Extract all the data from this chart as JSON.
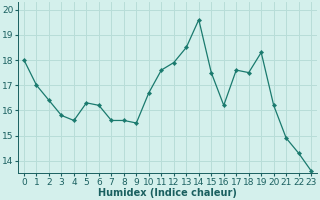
{
  "x": [
    0,
    1,
    2,
    3,
    4,
    5,
    6,
    7,
    8,
    9,
    10,
    11,
    12,
    13,
    14,
    15,
    16,
    17,
    18,
    19,
    20,
    21,
    22,
    23
  ],
  "y": [
    18.0,
    17.0,
    16.4,
    15.8,
    15.6,
    16.3,
    16.2,
    15.6,
    15.6,
    15.5,
    16.7,
    17.6,
    17.9,
    18.5,
    19.6,
    17.5,
    16.2,
    17.6,
    17.5,
    18.3,
    16.2,
    14.9,
    14.3,
    13.6
  ],
  "xlabel": "Humidex (Indice chaleur)",
  "line_color": "#1a7a6e",
  "marker_color": "#1a7a6e",
  "bg_color": "#d4f0ec",
  "grid_color": "#b8ddd8",
  "xlim": [
    -0.5,
    23.5
  ],
  "ylim": [
    13.5,
    20.3
  ],
  "yticks": [
    14,
    15,
    16,
    17,
    18,
    19,
    20
  ],
  "xtick_labels": [
    "0",
    "1",
    "2",
    "3",
    "4",
    "5",
    "6",
    "7",
    "8",
    "9",
    "10",
    "11",
    "12",
    "13",
    "14",
    "15",
    "16",
    "17",
    "18",
    "19",
    "20",
    "21",
    "22",
    "23"
  ],
  "xlabel_fontsize": 7,
  "tick_fontsize": 6.5,
  "text_color": "#1a6060"
}
